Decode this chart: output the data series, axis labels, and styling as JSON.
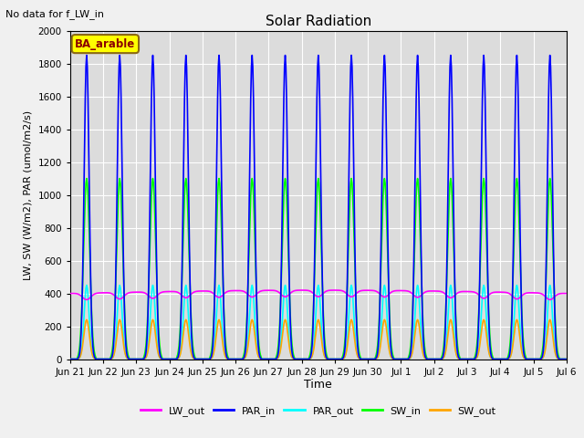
{
  "title": "Solar Radiation",
  "note": "No data for f_LW_in",
  "ylabel": "LW, SW (W/m2), PAR (umol/m2/s)",
  "xlabel": "Time",
  "legend_label": "BA_arable",
  "ylim": [
    0,
    2000
  ],
  "series": {
    "LW_out": {
      "color": "#ff00ff",
      "lw": 1.2
    },
    "PAR_in": {
      "color": "#0000ff",
      "lw": 1.2
    },
    "PAR_out": {
      "color": "#00ffff",
      "lw": 1.2
    },
    "SW_in": {
      "color": "#00ff00",
      "lw": 1.2
    },
    "SW_out": {
      "color": "#ffa500",
      "lw": 1.2
    }
  },
  "num_days": 15,
  "dt_minutes": 30,
  "peak_hour": 12.0,
  "peak_PAR_in": 1850,
  "peak_PAR_out": 450,
  "peak_SW_in": 1100,
  "peak_SW_out": 240,
  "lw_out_day": 370,
  "lw_out_night": 400,
  "background_color": "#dcdcdc",
  "grid_color": "#ffffff",
  "fig_facecolor": "#f0f0f0",
  "tick_labels": [
    "Jun 21",
    "Jun 22",
    "Jun 23",
    "Jun 24",
    "Jun 25",
    "Jun 26",
    "Jun 27",
    "Jun 28",
    "Jun 29",
    "Jun 30",
    "Jul 1",
    "Jul 2",
    "Jul 3",
    "Jul 4",
    "Jul 5",
    "Jul 6"
  ]
}
